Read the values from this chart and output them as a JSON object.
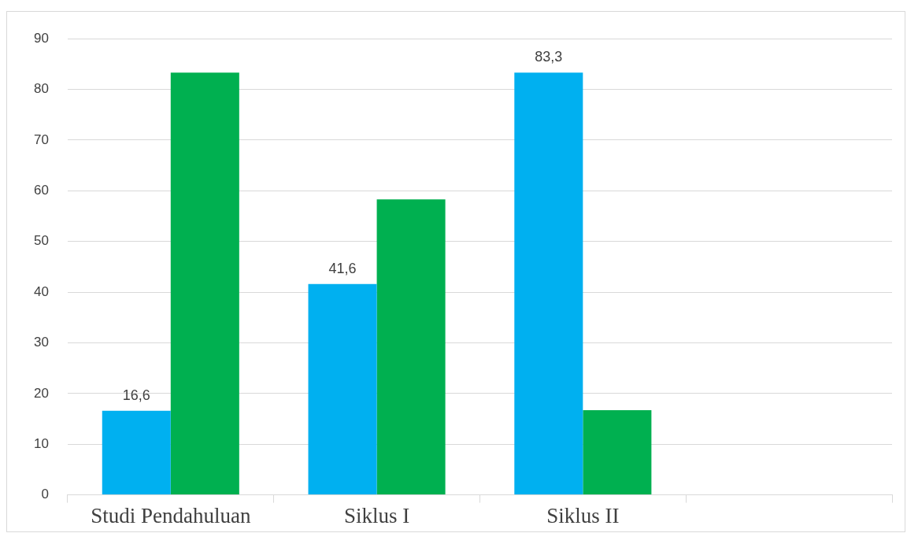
{
  "chart_data": {
    "type": "bar",
    "categories": [
      "Studi Pendahuluan",
      "Siklus I",
      "Siklus II",
      null
    ],
    "series": [
      {
        "color": "#00b0f0",
        "values": [
          16.6,
          41.6,
          83.3,
          null
        ],
        "value_labels": [
          "16,6",
          "41,6",
          "83,3",
          null
        ]
      },
      {
        "color": "#00b050",
        "values": [
          83.3,
          58.3,
          16.7,
          null
        ]
      }
    ],
    "ylim": [
      0,
      90
    ],
    "yticks": [
      0,
      10,
      20,
      30,
      40,
      50,
      60,
      70,
      80,
      90
    ],
    "grid": "y",
    "legend": false
  }
}
